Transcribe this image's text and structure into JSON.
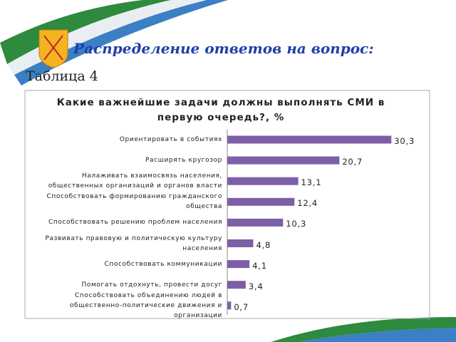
{
  "header": {
    "title": "Распределение ответов на вопрос:",
    "subtitle": "Таблица 4"
  },
  "chart_data": {
    "type": "bar",
    "orientation": "horizontal",
    "title": "Какие важнейшие задачи должны выполнять СМИ в первую очередь?, %",
    "categories": [
      "Ориентировать в событиях",
      "Расширять кругозор",
      "Налаживать взаимосвязь населения, общественных организаций и органов власти",
      "Способствовать формированию гражданского общества",
      "Способствовать решению проблем населения",
      "Развивать правовую и политическую культуру населения",
      "Способствовать коммуникации",
      "Помогать отдохнуть, провести досуг",
      "Способствовать объединению людей в общественно-политические движения и организации"
    ],
    "values": [
      30.3,
      20.7,
      13.1,
      12.4,
      10.3,
      4.8,
      4.1,
      3.4,
      0.7
    ],
    "value_labels": [
      "30,3",
      "20,7",
      "13,1",
      "12,4",
      "10,3",
      "4,8",
      "4,1",
      "3,4",
      "0,7"
    ],
    "color": "#7d5fa6"
  }
}
